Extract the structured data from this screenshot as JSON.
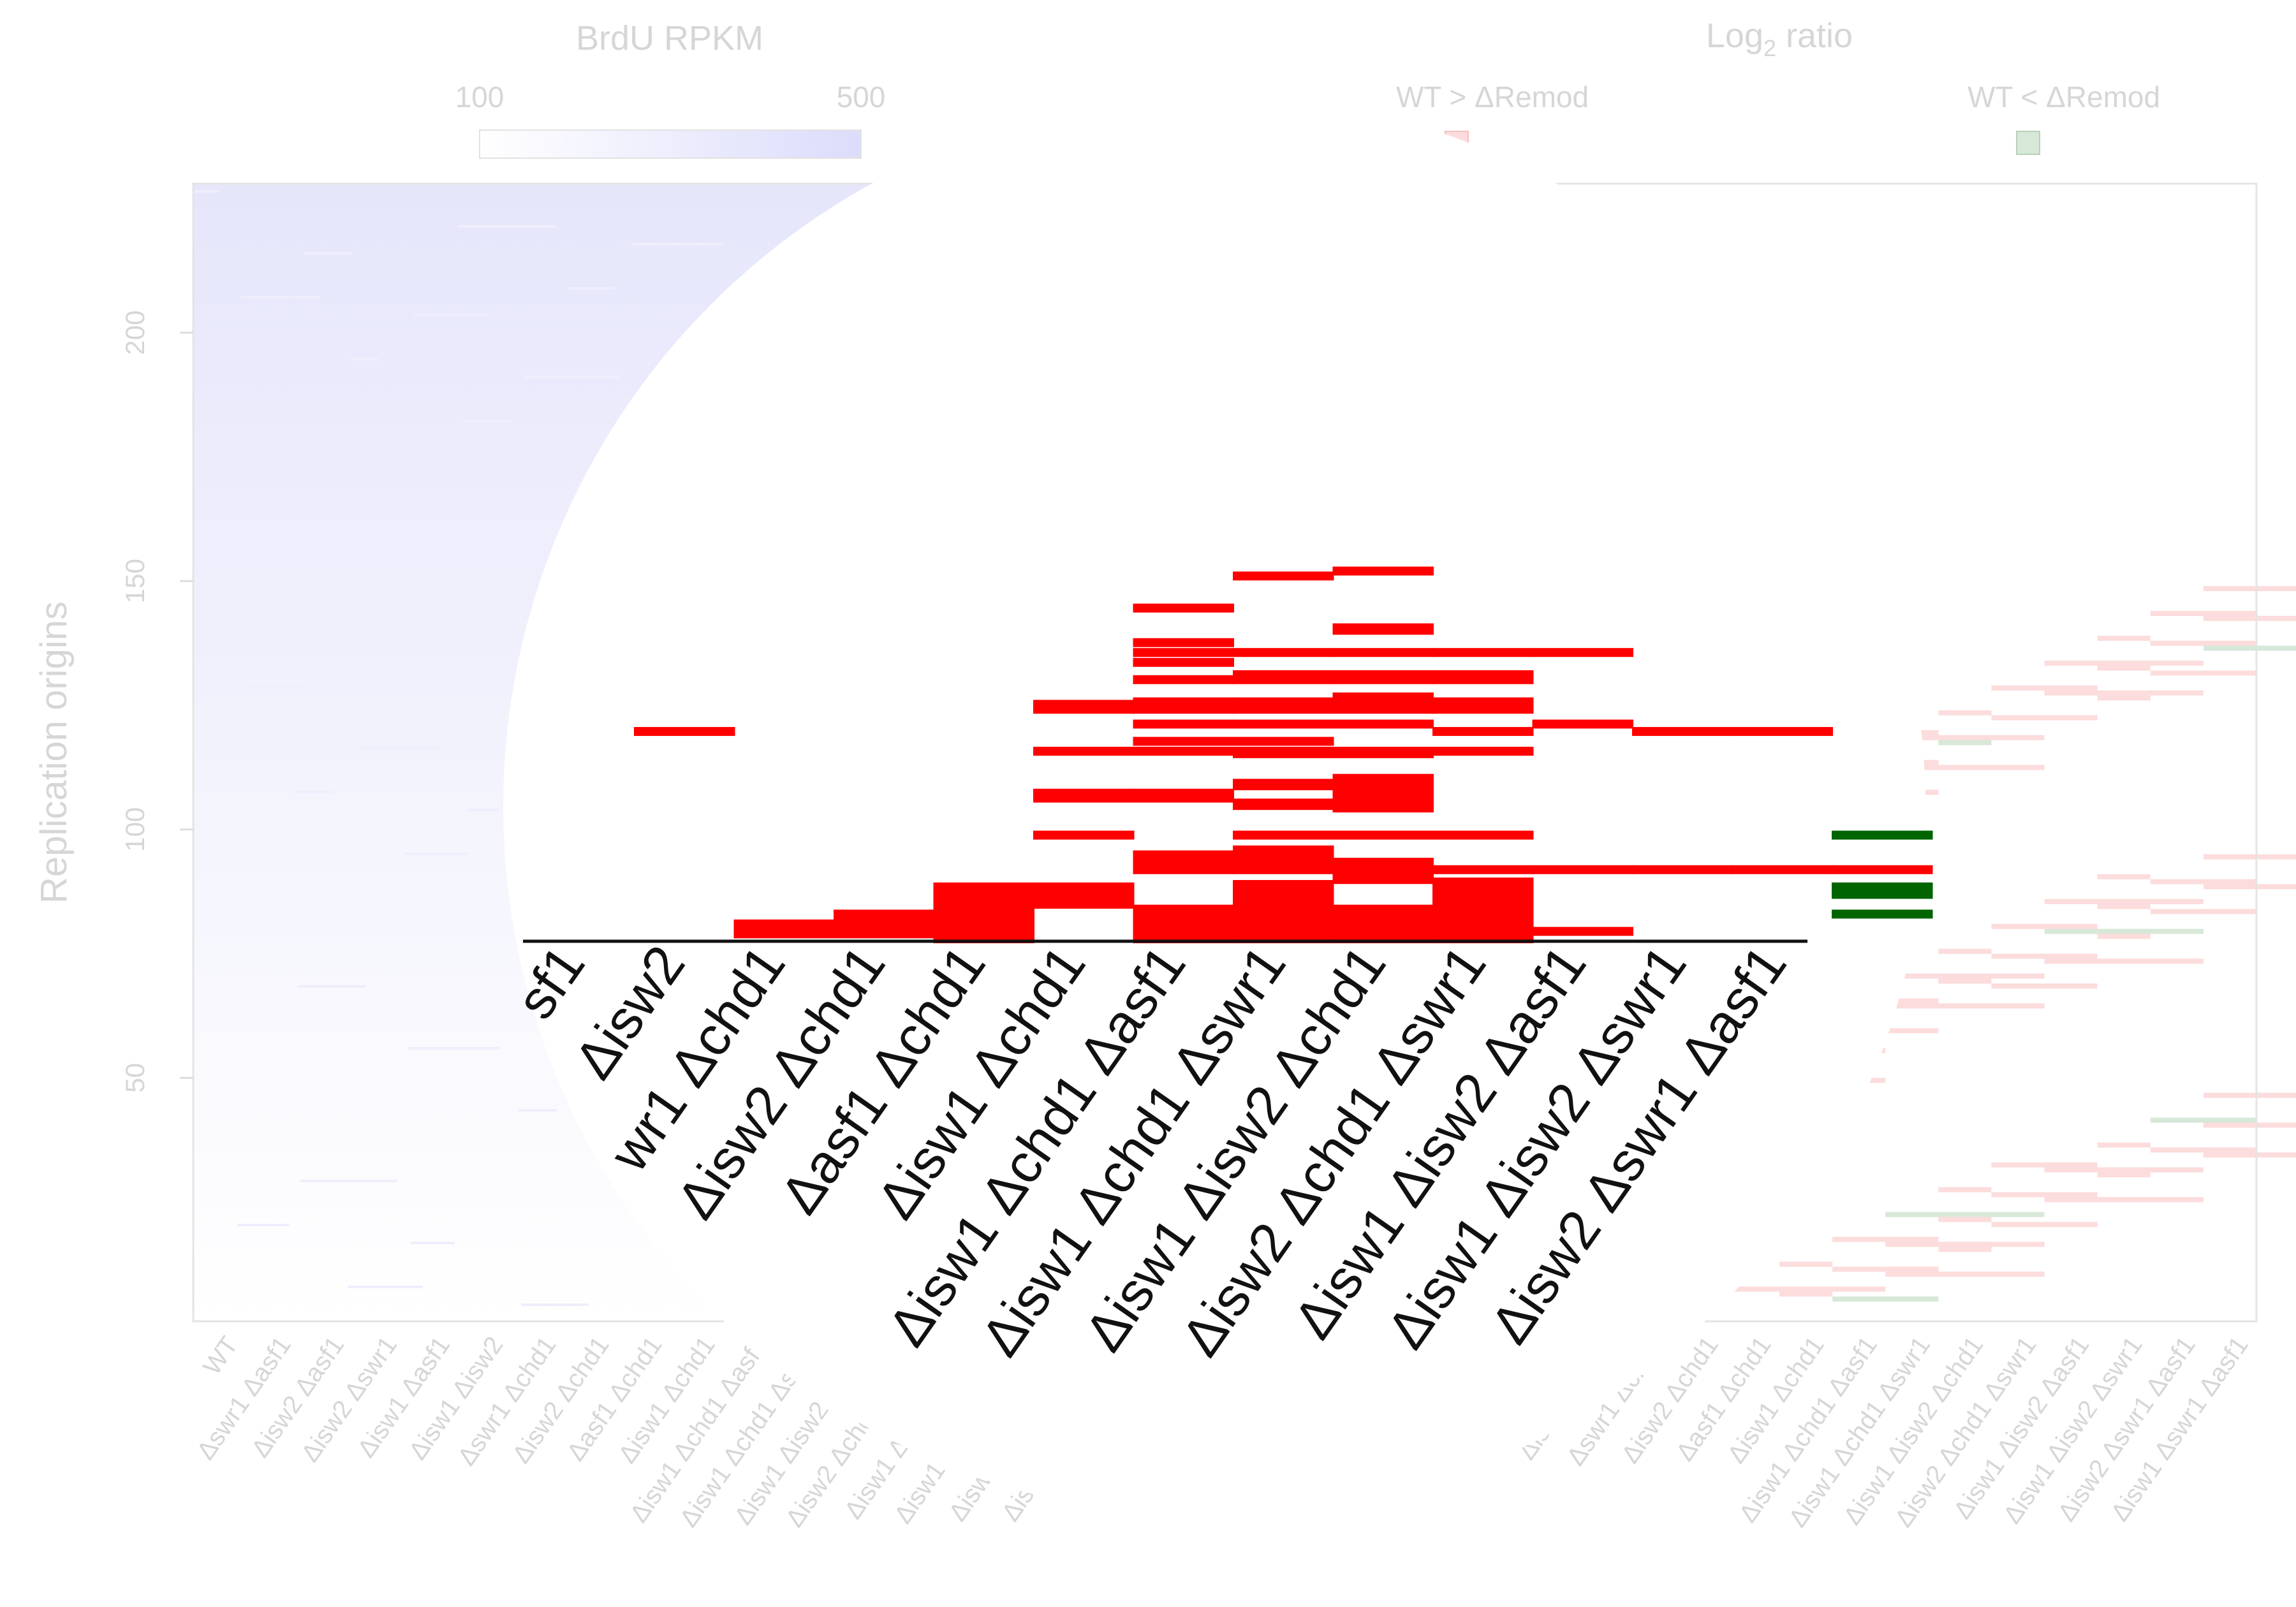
{
  "legends": {
    "brdu": {
      "title": "BrdU RPKM",
      "min_label": "100",
      "max_label": "500",
      "gradient_color": "#dcdcfb"
    },
    "log2": {
      "title_main": "Log",
      "title_sub": "2",
      "title_rest": " ratio",
      "pos_label": "WT > ΔRemod",
      "neg_label": "WT < ΔRemod",
      "pos_color": "#fcdcdc",
      "neg_color": "#d8e8d8"
    }
  },
  "chart_data": [
    {
      "type": "heatmap",
      "title": "BrdU RPKM",
      "ylabel": "Replication origins",
      "ylim": [
        1,
        230
      ],
      "yticks": [
        50,
        100,
        150,
        200
      ],
      "color_range": [
        100,
        500
      ],
      "columns": [
        "WT",
        "Δswr1 Δasf1",
        "Δisw2 Δasf1",
        "Δisw2 Δswr1",
        "Δisw1 Δasf1",
        "Δisw1 Δisw2",
        "Δswr1 Δchd1",
        "Δisw2 Δchd1",
        "Δasf1 Δchd1",
        "Δisw1 Δchd1",
        "Δisw1 Δchd1 Δasf1",
        "Δisw1 Δchd1 Δswr1",
        "Δisw1 Δisw2 Δchd1",
        "Δisw2 Δchd1 Δswr1",
        "Δisw1 Δisw2 Δasf1",
        "Δisw1 Δisw2 Δswr1",
        "Δisw2 Δswr1 Δasf1",
        "Δisw1 Δswr1 Δasf1"
      ],
      "overlay_labels": [
        "sf1",
        "Δisw2",
        "wr1 Δchd1",
        "Δisw2 Δchd1",
        "Δasf1 Δchd1",
        "Δisw1 Δchd1",
        "Δisw1 Δchd1 Δasf1",
        "Δisw1 Δchd1 Δswr1",
        "Δisw1 Δisw2 Δchd1",
        "Δisw2 Δchd1 Δswr1",
        "Δisw1 Δisw2 Δasf1",
        "Δisw1 Δisw2 Δswr1",
        "Δisw2 Δswr1 Δasf1"
      ],
      "segments": [
        [
          3,
          158,
          158
        ],
        [
          4,
          76,
          80
        ],
        [
          5,
          76,
          84
        ],
        [
          6,
          74,
          95
        ],
        [
          7,
          88,
          95
        ],
        [
          7,
          131,
          133
        ],
        [
          7,
          150,
          150
        ],
        [
          7,
          167,
          169
        ],
        [
          7,
          116,
          116
        ],
        [
          8,
          102,
          108
        ],
        [
          8,
          74,
          86
        ],
        [
          8,
          131,
          133
        ],
        [
          8,
          150,
          150
        ],
        [
          8,
          154,
          154
        ],
        [
          8,
          161,
          161
        ],
        [
          8,
          167,
          170
        ],
        [
          8,
          179,
          179
        ],
        [
          8,
          186,
          186
        ],
        [
          8,
          190,
          190
        ],
        [
          8,
          194,
          194
        ],
        [
          8,
          208,
          208
        ],
        [
          9,
          74,
          96
        ],
        [
          9,
          102,
          110
        ],
        [
          9,
          116,
          116
        ],
        [
          9,
          128,
          129
        ],
        [
          9,
          136,
          137
        ],
        [
          9,
          149,
          150
        ],
        [
          9,
          154,
          154
        ],
        [
          9,
          161,
          161
        ],
        [
          9,
          167,
          170
        ],
        [
          9,
          179,
          181
        ],
        [
          9,
          190,
          190
        ],
        [
          9,
          221,
          221
        ],
        [
          10,
          74,
          86
        ],
        [
          10,
          98,
          105
        ],
        [
          10,
          116,
          116
        ],
        [
          10,
          127,
          139
        ],
        [
          10,
          149,
          150
        ],
        [
          10,
          161,
          161
        ],
        [
          10,
          167,
          172
        ],
        [
          10,
          179,
          181
        ],
        [
          10,
          190,
          190
        ],
        [
          10,
          199,
          200
        ],
        [
          10,
          223,
          223
        ],
        [
          11,
          74,
          97
        ],
        [
          11,
          102,
          102
        ],
        [
          11,
          116,
          116
        ],
        [
          11,
          150,
          150
        ],
        [
          11,
          158,
          158
        ],
        [
          11,
          167,
          170
        ],
        [
          11,
          179,
          181
        ],
        [
          11,
          190,
          190
        ],
        [
          12,
          77,
          77
        ],
        [
          12,
          102,
          102
        ],
        [
          12,
          161,
          161
        ],
        [
          12,
          190,
          190
        ],
        [
          13,
          102,
          102
        ],
        [
          13,
          158,
          158
        ],
        [
          14,
          102,
          102
        ],
        [
          14,
          158,
          158
        ],
        [
          15,
          102,
          102
        ]
      ],
      "green_segments": [
        [
          15,
          84,
          84
        ],
        [
          15,
          92,
          95
        ],
        [
          15,
          116,
          116
        ]
      ]
    },
    {
      "type": "heatmap",
      "title": "Log2 ratio",
      "legend": [
        "WT > ΔRemod",
        "WT < ΔRemod"
      ],
      "columns": [
        "WT",
        "Δswr1 Δasf1",
        "Δisw2 Δasf1",
        "Δisw2 Δswr1",
        "Δisw1 Δasf1",
        "Δisw1 Δisw2",
        "Δswr1 Δchd1",
        "Δisw2 Δchd1",
        "Δasf1 Δchd1",
        "Δisw1 Δchd1",
        "Δisw1 Δchd1 Δasf1",
        "Δisw1 Δchd1 Δswr1",
        "Δisw1 Δisw2 Δchd1",
        "Δisw2 Δchd1 Δswr1",
        "Δisw1 Δisw2 Δasf1",
        "Δisw1 Δisw2 Δswr1",
        "Δisw2 Δswr1 Δasf1",
        "Δisw1 Δswr1 Δasf1"
      ]
    }
  ]
}
